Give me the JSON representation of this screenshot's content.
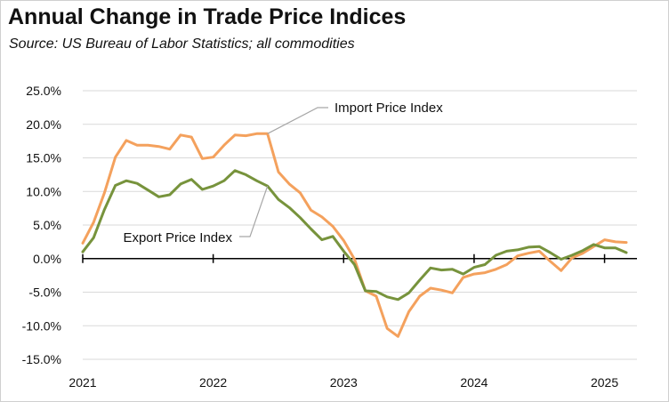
{
  "chart_data": {
    "type": "line",
    "title": "Annual Change in Trade Price Indices",
    "subtitle": "Source:  US Bureau of Labor Statistics; all commodities",
    "y_ticks": [
      "25.0%",
      "20.0%",
      "15.0%",
      "10.0%",
      "5.0%",
      "0.0%",
      "-5.0%",
      "-10.0%",
      "-15.0%"
    ],
    "y_tick_values": [
      25,
      20,
      15,
      10,
      5,
      0,
      -5,
      -10,
      -15
    ],
    "ylim": [
      -15,
      25
    ],
    "x_ticks": [
      "2021",
      "2022",
      "2023",
      "2024",
      "2025"
    ],
    "x_start": "2021-01",
    "x_end": "2025-03",
    "grid": true,
    "series": [
      {
        "name": "Import Price Index",
        "color": "#F4A15D",
        "values": [
          2.3,
          5.4,
          9.8,
          15.1,
          17.6,
          16.9,
          16.9,
          16.7,
          16.3,
          18.4,
          18.1,
          14.9,
          15.1,
          16.9,
          18.4,
          18.3,
          18.6,
          18.6,
          12.9,
          11.1,
          9.8,
          7.2,
          6.2,
          4.8,
          2.7,
          -0.1,
          -4.8,
          -5.6,
          -10.4,
          -11.6,
          -7.9,
          -5.6,
          -4.4,
          -4.7,
          -5.1,
          -2.8,
          -2.3,
          -2.1,
          -1.6,
          -0.9,
          0.4,
          0.8,
          1.1,
          -0.4,
          -1.8,
          0.1,
          0.8,
          1.8,
          2.8,
          2.5,
          2.4
        ]
      },
      {
        "name": "Export Price Index",
        "color": "#77933C",
        "values": [
          1.0,
          3.1,
          7.3,
          10.9,
          11.6,
          11.2,
          10.2,
          9.2,
          9.5,
          11.1,
          11.8,
          10.3,
          10.8,
          11.6,
          13.1,
          12.5,
          11.6,
          10.8,
          8.8,
          7.6,
          6.1,
          4.4,
          2.8,
          3.3,
          1.1,
          -0.9,
          -4.8,
          -4.9,
          -5.7,
          -6.1,
          -5.1,
          -3.2,
          -1.4,
          -1.7,
          -1.6,
          -2.3,
          -1.3,
          -0.9,
          0.5,
          1.1,
          1.3,
          1.7,
          1.8,
          0.9,
          -0.1,
          0.5,
          1.2,
          2.1,
          1.6,
          1.6,
          0.9
        ]
      }
    ],
    "annotations": [
      "Import Price Index",
      "Export Price Index"
    ]
  }
}
